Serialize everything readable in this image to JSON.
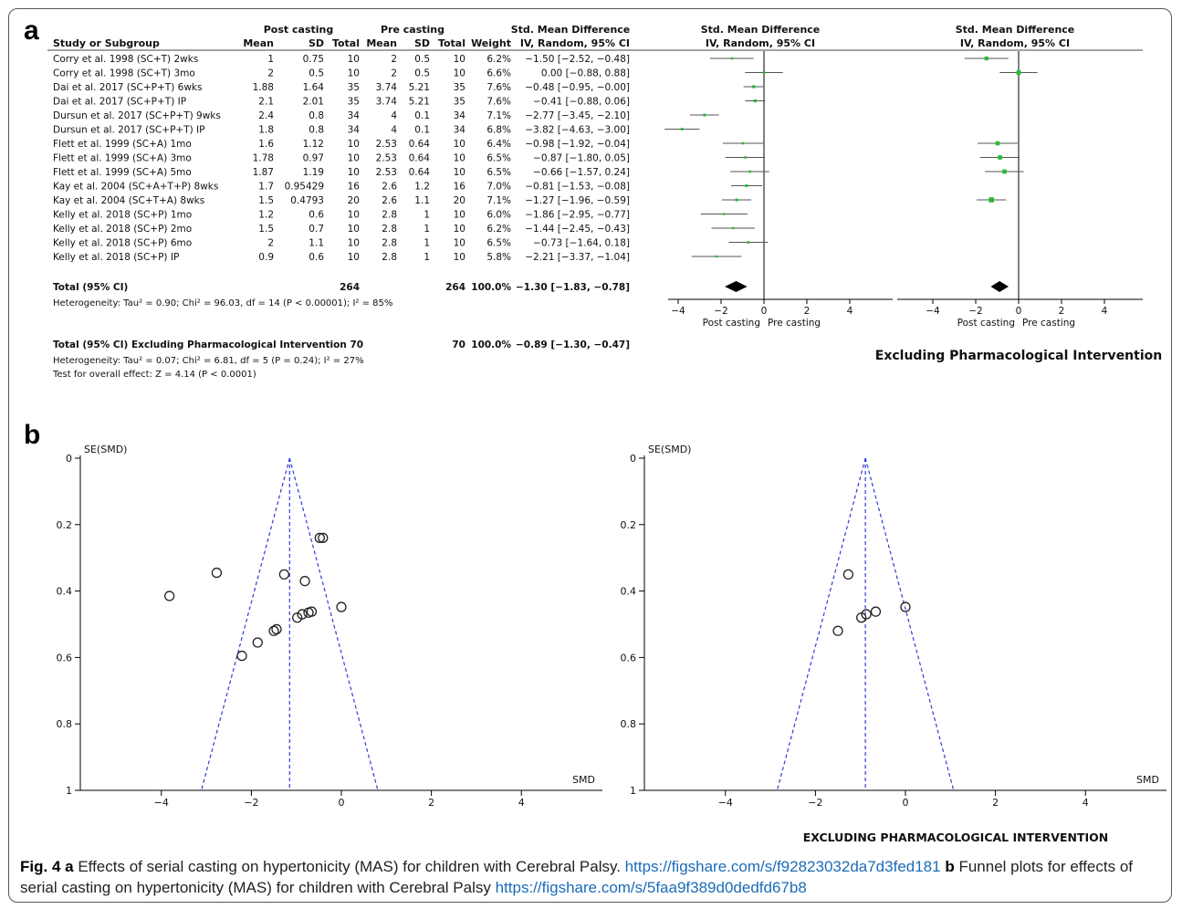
{
  "figure": {
    "panel_a_label": "a",
    "panel_b_label": "b",
    "caption": {
      "fig_label": "Fig. 4",
      "part_a_letter": "a",
      "part_a_text": " Effects of serial casting on hypertonicity (MAS) for children with Cerebral Palsy. ",
      "part_a_link": "https://figshare.com/s/f92823032da7d3fed181",
      "part_b_letter": "b",
      "part_b_text": " Funnel plots for effects of serial casting on hypertonicity (MAS) for children with Cerebral Palsy ",
      "part_b_link": "https://figshare.com/s/5faa9f389d0dedfd67b8"
    }
  },
  "chart_data": [
    {
      "type": "forest",
      "group_headers": [
        "Post casting",
        "Pre casting",
        "Std. Mean Difference"
      ],
      "columns": [
        "Study or Subgroup",
        "Mean",
        "SD",
        "Total",
        "Mean",
        "SD",
        "Total",
        "Weight",
        "IV, Random, 95% CI"
      ],
      "plot_header": [
        "Std. Mean Difference",
        "IV, Random, 95% CI"
      ],
      "rows": [
        {
          "study": "Corry et al. 1998 (SC+T) 2wks",
          "post_mean": "1",
          "post_sd": "0.75",
          "post_total": "10",
          "pre_mean": "2",
          "pre_sd": "0.5",
          "pre_total": "10",
          "weight": "6.2%",
          "ci_text": "−1.50 [−2.52, −0.48]",
          "smd": -1.5,
          "lo": -2.52,
          "hi": -0.48
        },
        {
          "study": "Corry et al. 1998 (SC+T) 3mo",
          "post_mean": "2",
          "post_sd": "0.5",
          "post_total": "10",
          "pre_mean": "2",
          "pre_sd": "0.5",
          "pre_total": "10",
          "weight": "6.6%",
          "ci_text": "0.00 [−0.88, 0.88]",
          "smd": 0.0,
          "lo": -0.88,
          "hi": 0.88
        },
        {
          "study": "Dai et al. 2017 (SC+P+T) 6wks",
          "post_mean": "1.88",
          "post_sd": "1.64",
          "post_total": "35",
          "pre_mean": "3.74",
          "pre_sd": "5.21",
          "pre_total": "35",
          "weight": "7.6%",
          "ci_text": "−0.48 [−0.95, −0.00]",
          "smd": -0.48,
          "lo": -0.95,
          "hi": 0.0
        },
        {
          "study": "Dai et al. 2017 (SC+P+T) IP",
          "post_mean": "2.1",
          "post_sd": "2.01",
          "post_total": "35",
          "pre_mean": "3.74",
          "pre_sd": "5.21",
          "pre_total": "35",
          "weight": "7.6%",
          "ci_text": "−0.41 [−0.88, 0.06]",
          "smd": -0.41,
          "lo": -0.88,
          "hi": 0.06
        },
        {
          "study": "Dursun et al. 2017 (SC+P+T) 9wks",
          "post_mean": "2.4",
          "post_sd": "0.8",
          "post_total": "34",
          "pre_mean": "4",
          "pre_sd": "0.1",
          "pre_total": "34",
          "weight": "7.1%",
          "ci_text": "−2.77 [−3.45, −2.10]",
          "smd": -2.77,
          "lo": -3.45,
          "hi": -2.1
        },
        {
          "study": "Dursun et al. 2017 (SC+P+T) IP",
          "post_mean": "1.8",
          "post_sd": "0.8",
          "post_total": "34",
          "pre_mean": "4",
          "pre_sd": "0.1",
          "pre_total": "34",
          "weight": "6.8%",
          "ci_text": "−3.82 [−4.63, −3.00]",
          "smd": -3.82,
          "lo": -4.63,
          "hi": -3.0
        },
        {
          "study": "Flett et al. 1999 (SC+A) 1mo",
          "post_mean": "1.6",
          "post_sd": "1.12",
          "post_total": "10",
          "pre_mean": "2.53",
          "pre_sd": "0.64",
          "pre_total": "10",
          "weight": "6.4%",
          "ci_text": "−0.98 [−1.92, −0.04]",
          "smd": -0.98,
          "lo": -1.92,
          "hi": -0.04
        },
        {
          "study": "Flett et al. 1999 (SC+A) 3mo",
          "post_mean": "1.78",
          "post_sd": "0.97",
          "post_total": "10",
          "pre_mean": "2.53",
          "pre_sd": "0.64",
          "pre_total": "10",
          "weight": "6.5%",
          "ci_text": "−0.87 [−1.80, 0.05]",
          "smd": -0.87,
          "lo": -1.8,
          "hi": 0.05
        },
        {
          "study": "Flett et al. 1999 (SC+A) 5mo",
          "post_mean": "1.87",
          "post_sd": "1.19",
          "post_total": "10",
          "pre_mean": "2.53",
          "pre_sd": "0.64",
          "pre_total": "10",
          "weight": "6.5%",
          "ci_text": "−0.66 [−1.57, 0.24]",
          "smd": -0.66,
          "lo": -1.57,
          "hi": 0.24
        },
        {
          "study": "Kay et al. 2004 (SC+A+T+P) 8wks",
          "post_mean": "1.7",
          "post_sd": "0.95429",
          "post_total": "16",
          "pre_mean": "2.6",
          "pre_sd": "1.2",
          "pre_total": "16",
          "weight": "7.0%",
          "ci_text": "−0.81 [−1.53, −0.08]",
          "smd": -0.81,
          "lo": -1.53,
          "hi": -0.08
        },
        {
          "study": "Kay et al. 2004 (SC+T+A) 8wks",
          "post_mean": "1.5",
          "post_sd": "0.4793",
          "post_total": "20",
          "pre_mean": "2.6",
          "pre_sd": "1.1",
          "pre_total": "20",
          "weight": "7.1%",
          "ci_text": "−1.27 [−1.96, −0.59]",
          "smd": -1.27,
          "lo": -1.96,
          "hi": -0.59
        },
        {
          "study": "Kelly et al. 2018 (SC+P) 1mo",
          "post_mean": "1.2",
          "post_sd": "0.6",
          "post_total": "10",
          "pre_mean": "2.8",
          "pre_sd": "1",
          "pre_total": "10",
          "weight": "6.0%",
          "ci_text": "−1.86 [−2.95, −0.77]",
          "smd": -1.86,
          "lo": -2.95,
          "hi": -0.77
        },
        {
          "study": "Kelly et al. 2018 (SC+P) 2mo",
          "post_mean": "1.5",
          "post_sd": "0.7",
          "post_total": "10",
          "pre_mean": "2.8",
          "pre_sd": "1",
          "pre_total": "10",
          "weight": "6.2%",
          "ci_text": "−1.44 [−2.45, −0.43]",
          "smd": -1.44,
          "lo": -2.45,
          "hi": -0.43
        },
        {
          "study": "Kelly et al. 2018 (SC+P) 6mo",
          "post_mean": "2",
          "post_sd": "1.1",
          "post_total": "10",
          "pre_mean": "2.8",
          "pre_sd": "1",
          "pre_total": "10",
          "weight": "6.5%",
          "ci_text": "−0.73 [−1.64, 0.18]",
          "smd": -0.73,
          "lo": -1.64,
          "hi": 0.18
        },
        {
          "study": "Kelly et al. 2018 (SC+P) IP",
          "post_mean": "0.9",
          "post_sd": "0.6",
          "post_total": "10",
          "pre_mean": "2.8",
          "pre_sd": "1",
          "pre_total": "10",
          "weight": "5.8%",
          "ci_text": "−2.21 [−3.37, −1.04]",
          "smd": -2.21,
          "lo": -3.37,
          "hi": -1.04
        }
      ],
      "total": {
        "label": "Total (95% CI)",
        "post_total": "264",
        "pre_total": "264",
        "weight": "100.0%",
        "ci_text": "−1.30 [−1.83, −0.78]",
        "smd": -1.3,
        "lo": -1.83,
        "hi": -0.78
      },
      "heterogeneity": "Heterogeneity: Tau² = 0.90; Chi² = 96.03, df = 14 (P < 0.00001); I² = 85%",
      "excl_total": {
        "label": "Total (95% CI) Excluding Pharmacological Intervention 70",
        "pre_total": "70",
        "weight": "100.0%",
        "ci_text": "−0.89 [−1.30, −0.47]",
        "smd": -0.89,
        "lo": -1.3,
        "hi": -0.47
      },
      "excl_heterogeneity": "Heterogeneity: Tau² = 0.07; Chi² = 6.81, df = 5 (P = 0.24); I² = 27%",
      "excl_overall": "Test for overall effect: Z = 4.14 (P < 0.0001)",
      "excl_study_indices": [
        0,
        1,
        6,
        7,
        8,
        10
      ],
      "axis": {
        "xlim": [
          -5,
          5
        ],
        "ticks": [
          -4,
          -2,
          0,
          2,
          4
        ],
        "tick_labels": [
          "−4",
          "−2",
          "0",
          "2",
          "4"
        ],
        "left_label": "Post casting",
        "right_label": "Pre casting"
      },
      "excl_title": "Excluding Pharmacological Intervention"
    },
    {
      "type": "scatter",
      "subtype": "funnel",
      "xlabel": "SMD",
      "ylabel": "SE(SMD)",
      "xlim": [
        -5.8,
        5.8
      ],
      "ylim": [
        0,
        1
      ],
      "x_ticks": [
        -4,
        -2,
        0,
        2,
        4
      ],
      "x_tick_labels": [
        "−4",
        "−2",
        "0",
        "2",
        "4"
      ],
      "y_ticks": [
        0,
        0.2,
        0.4,
        0.6,
        0.8,
        1
      ],
      "y_tick_labels": [
        "0",
        "0.2",
        "0.4",
        "0.6",
        "0.8",
        "1"
      ],
      "pooled": -1.15,
      "points": [
        {
          "x": -3.82,
          "y": 0.415
        },
        {
          "x": -2.77,
          "y": 0.345
        },
        {
          "x": -2.21,
          "y": 0.595
        },
        {
          "x": -1.86,
          "y": 0.555
        },
        {
          "x": -1.5,
          "y": 0.52
        },
        {
          "x": -1.44,
          "y": 0.515
        },
        {
          "x": -1.27,
          "y": 0.35
        },
        {
          "x": -0.98,
          "y": 0.48
        },
        {
          "x": -0.87,
          "y": 0.47
        },
        {
          "x": -0.81,
          "y": 0.37
        },
        {
          "x": -0.73,
          "y": 0.465
        },
        {
          "x": -0.66,
          "y": 0.462
        },
        {
          "x": -0.48,
          "y": 0.24
        },
        {
          "x": -0.41,
          "y": 0.24
        },
        {
          "x": 0.0,
          "y": 0.448
        }
      ]
    },
    {
      "type": "scatter",
      "subtype": "funnel",
      "title": "EXCLUDING PHARMACOLOGICAL INTERVENTION",
      "xlabel": "SMD",
      "ylabel": "SE(SMD)",
      "xlim": [
        -5.8,
        5.8
      ],
      "ylim": [
        0,
        1
      ],
      "x_ticks": [
        -4,
        -2,
        0,
        2,
        4
      ],
      "x_tick_labels": [
        "−4",
        "−2",
        "0",
        "2",
        "4"
      ],
      "y_ticks": [
        0,
        0.2,
        0.4,
        0.6,
        0.8,
        1
      ],
      "y_tick_labels": [
        "0",
        "0.2",
        "0.4",
        "0.6",
        "0.8",
        "1"
      ],
      "pooled": -0.89,
      "points": [
        {
          "x": -1.5,
          "y": 0.52
        },
        {
          "x": -1.27,
          "y": 0.35
        },
        {
          "x": -0.98,
          "y": 0.48
        },
        {
          "x": -0.87,
          "y": 0.47
        },
        {
          "x": -0.66,
          "y": 0.462
        },
        {
          "x": 0.0,
          "y": 0.448
        }
      ]
    }
  ]
}
